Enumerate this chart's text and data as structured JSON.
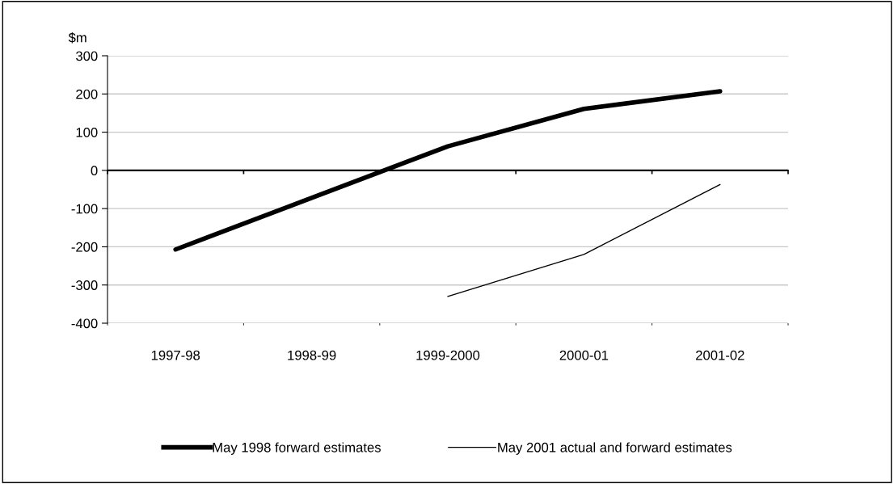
{
  "chart_data": {
    "type": "line",
    "ylabel": "$m",
    "categories": [
      "1997-98",
      "1998-99",
      "1999-2000",
      "2000-01",
      "2001-02"
    ],
    "series": [
      {
        "name": "May 1998 forward estimates",
        "color": "#000000",
        "values": [
          -207,
          -72,
          63,
          161,
          207
        ]
      },
      {
        "name": "May 2001 actual and forward estimates",
        "color": "#000000",
        "values": [
          null,
          null,
          -330,
          -220,
          -37
        ]
      }
    ],
    "ylim": [
      -400,
      300
    ],
    "yticks": [
      -400,
      -300,
      -200,
      -100,
      0,
      100,
      200,
      300
    ],
    "grid": "y",
    "legend": "bottom",
    "marker": "none",
    "line_style": "solid"
  }
}
